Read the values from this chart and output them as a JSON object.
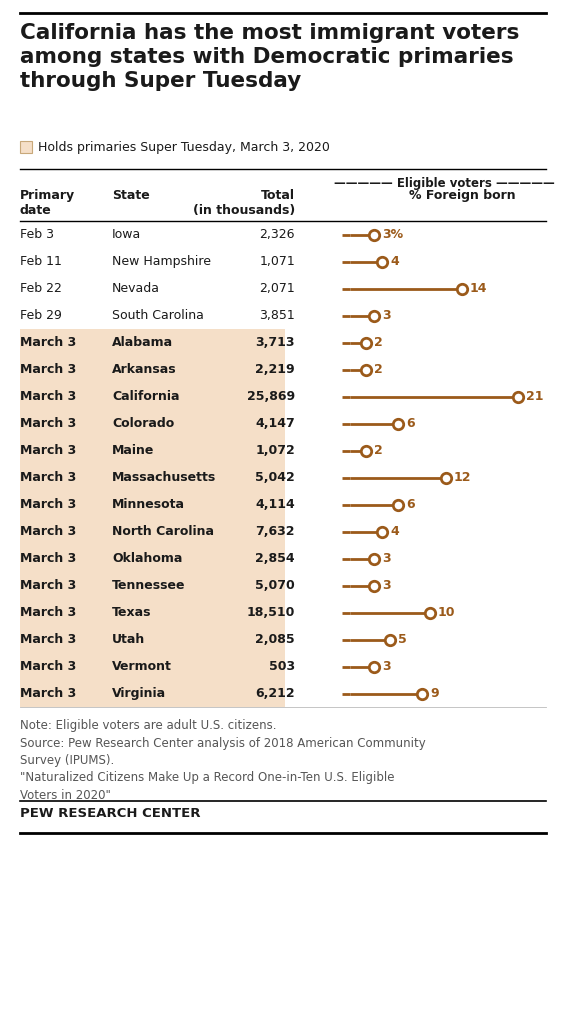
{
  "title": "California has the most immigrant voters\namong states with Democratic primaries\nthrough Super Tuesday",
  "legend_label": "Holds primaries Super Tuesday, March 3, 2020",
  "legend_color": "#f5dfc8",
  "rows": [
    {
      "date": "Feb 3",
      "state": "Iowa",
      "total": "2,326",
      "pct": 3,
      "pct_label": "3%",
      "super_tuesday": false
    },
    {
      "date": "Feb 11",
      "state": "New Hampshire",
      "total": "1,071",
      "pct": 4,
      "pct_label": "4",
      "super_tuesday": false
    },
    {
      "date": "Feb 22",
      "state": "Nevada",
      "total": "2,071",
      "pct": 14,
      "pct_label": "14",
      "super_tuesday": false
    },
    {
      "date": "Feb 29",
      "state": "South Carolina",
      "total": "3,851",
      "pct": 3,
      "pct_label": "3",
      "super_tuesday": false
    },
    {
      "date": "March 3",
      "state": "Alabama",
      "total": "3,713",
      "pct": 2,
      "pct_label": "2",
      "super_tuesday": true
    },
    {
      "date": "March 3",
      "state": "Arkansas",
      "total": "2,219",
      "pct": 2,
      "pct_label": "2",
      "super_tuesday": true
    },
    {
      "date": "March 3",
      "state": "California",
      "total": "25,869",
      "pct": 21,
      "pct_label": "21",
      "super_tuesday": true
    },
    {
      "date": "March 3",
      "state": "Colorado",
      "total": "4,147",
      "pct": 6,
      "pct_label": "6",
      "super_tuesday": true
    },
    {
      "date": "March 3",
      "state": "Maine",
      "total": "1,072",
      "pct": 2,
      "pct_label": "2",
      "super_tuesday": true
    },
    {
      "date": "March 3",
      "state": "Massachusetts",
      "total": "5,042",
      "pct": 12,
      "pct_label": "12",
      "super_tuesday": true
    },
    {
      "date": "March 3",
      "state": "Minnesota",
      "total": "4,114",
      "pct": 6,
      "pct_label": "6",
      "super_tuesday": true
    },
    {
      "date": "March 3",
      "state": "North Carolina",
      "total": "7,632",
      "pct": 4,
      "pct_label": "4",
      "super_tuesday": true
    },
    {
      "date": "March 3",
      "state": "Oklahoma",
      "total": "2,854",
      "pct": 3,
      "pct_label": "3",
      "super_tuesday": true
    },
    {
      "date": "March 3",
      "state": "Tennessee",
      "total": "5,070",
      "pct": 3,
      "pct_label": "3",
      "super_tuesday": true
    },
    {
      "date": "March 3",
      "state": "Texas",
      "total": "18,510",
      "pct": 10,
      "pct_label": "10",
      "super_tuesday": true
    },
    {
      "date": "March 3",
      "state": "Utah",
      "total": "2,085",
      "pct": 5,
      "pct_label": "5",
      "super_tuesday": true
    },
    {
      "date": "March 3",
      "state": "Vermont",
      "total": "503",
      "pct": 3,
      "pct_label": "3",
      "super_tuesday": true
    },
    {
      "date": "March 3",
      "state": "Virginia",
      "total": "6,212",
      "pct": 9,
      "pct_label": "9",
      "super_tuesday": true
    }
  ],
  "dot_color": "#9b5a1a",
  "line_color": "#9b5a1a",
  "super_tuesday_bg": "#f5dfc8",
  "note_text": "Note: Eligible voters are adult U.S. citizens.\nSource: Pew Research Center analysis of 2018 American Community\nSurvey (IPUMS).\n\"Naturalized Citizens Make Up a Record One-in-Ten U.S. Eligible\nVoters in 2020\"",
  "footer": "PEW RESEARCH CENTER",
  "title_fontsize": 15.5,
  "body_fontsize": 9.5,
  "note_fontsize": 8.5,
  "footer_fontsize": 9,
  "bg_color": "#ffffff",
  "text_color": "#1a1a1a",
  "max_pct": 21
}
